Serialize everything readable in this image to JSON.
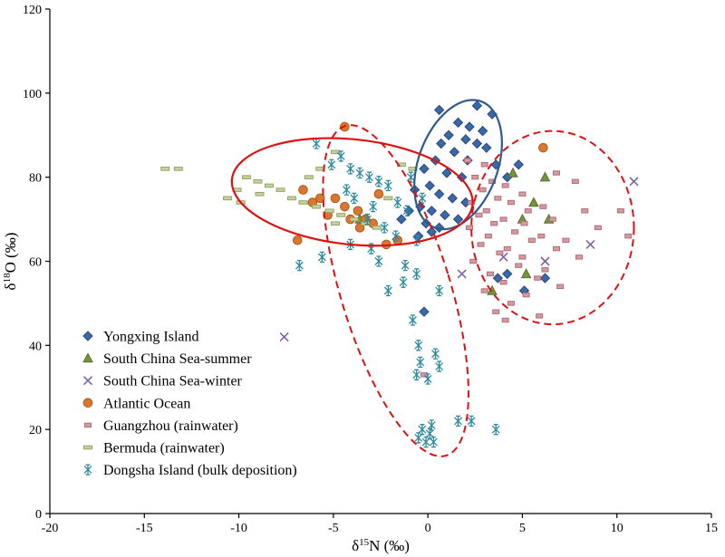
{
  "chart_data": {
    "type": "scatter",
    "title": "",
    "xlabel": "δ15N (‰)",
    "ylabel": "δ18O (‰)",
    "xlabel_parts": {
      "prefix": "δ",
      "sup": "15",
      "rest": "N (‰)"
    },
    "ylabel_parts": {
      "prefix": "δ",
      "sup": "18",
      "rest": "O (‰)"
    },
    "xlim": [
      -20,
      15
    ],
    "ylim": [
      0,
      120
    ],
    "xticks": [
      -20,
      -15,
      -10,
      -5,
      0,
      5,
      10,
      15
    ],
    "yticks": [
      0,
      20,
      40,
      60,
      80,
      100,
      120
    ],
    "grid": false,
    "legend_position": "inside lower-left",
    "series": [
      {
        "id": "yongxing-island",
        "name": "Yongxing Island",
        "marker": "diamond",
        "color": "#3A68A8",
        "stroke": "#27497A",
        "points": [
          [
            0.6,
            96
          ],
          [
            2.6,
            97
          ],
          [
            3.4,
            95
          ],
          [
            1.6,
            93
          ],
          [
            2.2,
            92
          ],
          [
            2.9,
            91
          ],
          [
            1.1,
            90
          ],
          [
            2.0,
            89
          ],
          [
            0.7,
            88
          ],
          [
            2.6,
            88
          ],
          [
            3.1,
            87
          ],
          [
            1.4,
            86
          ],
          [
            0.4,
            84
          ],
          [
            2.1,
            84
          ],
          [
            3.6,
            83
          ],
          [
            4.8,
            83
          ],
          [
            -0.2,
            82
          ],
          [
            1.0,
            81
          ],
          [
            1.8,
            80
          ],
          [
            4.2,
            80
          ],
          [
            0.1,
            78
          ],
          [
            -0.7,
            77
          ],
          [
            0.6,
            76
          ],
          [
            1.3,
            75
          ],
          [
            2.0,
            74
          ],
          [
            -0.4,
            73
          ],
          [
            0.2,
            72
          ],
          [
            0.9,
            71
          ],
          [
            1.6,
            70
          ],
          [
            -0.1,
            69
          ],
          [
            0.6,
            68
          ],
          [
            0.2,
            67
          ],
          [
            -0.5,
            66
          ],
          [
            -1.0,
            72
          ],
          [
            -1.4,
            70
          ],
          [
            4.2,
            57
          ],
          [
            3.7,
            56
          ],
          [
            6.2,
            56
          ],
          [
            5.1,
            53
          ],
          [
            -0.2,
            48
          ]
        ]
      },
      {
        "id": "scs-summer",
        "name": "South China Sea-summer",
        "marker": "triangle",
        "color": "#77933C",
        "stroke": "#5A7030",
        "points": [
          [
            4.5,
            81
          ],
          [
            6.2,
            80
          ],
          [
            5.6,
            74
          ],
          [
            6.4,
            70
          ],
          [
            5.0,
            70
          ],
          [
            -3.6,
            70
          ],
          [
            5.2,
            57
          ],
          [
            3.4,
            53
          ]
        ]
      },
      {
        "id": "scs-winter",
        "name": "South China Sea-winter",
        "marker": "x",
        "color": "#8064A2",
        "stroke": "#8064A2",
        "points": [
          [
            10.9,
            79
          ],
          [
            8.6,
            64
          ],
          [
            6.2,
            60
          ],
          [
            4.0,
            61
          ],
          [
            1.8,
            57
          ],
          [
            -7.6,
            42
          ]
        ]
      },
      {
        "id": "atlantic-ocean",
        "name": "Atlantic Ocean",
        "marker": "circle",
        "color": "#D9772F",
        "stroke": "#AD5B1F",
        "points": [
          [
            -4.4,
            92
          ],
          [
            6.1,
            87
          ],
          [
            -6.6,
            77
          ],
          [
            -2.6,
            76
          ],
          [
            -5.7,
            75
          ],
          [
            -4.9,
            75
          ],
          [
            -6.1,
            74
          ],
          [
            -4.4,
            73
          ],
          [
            -3.7,
            72
          ],
          [
            -5.3,
            71
          ],
          [
            -4.1,
            70
          ],
          [
            -3.3,
            70
          ],
          [
            -2.9,
            69
          ],
          [
            -3.6,
            68
          ],
          [
            -6.9,
            65
          ],
          [
            -1.6,
            65
          ],
          [
            -2.2,
            64
          ]
        ]
      },
      {
        "id": "guangzhou-rainwater",
        "name": "Guangzhou (rainwater)",
        "marker": "hbar",
        "color": "#D69AA2",
        "stroke": "#AF6E77",
        "points": [
          [
            2.1,
            84
          ],
          [
            3.0,
            83
          ],
          [
            6.8,
            81
          ],
          [
            2.5,
            80
          ],
          [
            3.4,
            79
          ],
          [
            7.8,
            79
          ],
          [
            4.1,
            78
          ],
          [
            2.9,
            77
          ],
          [
            5.0,
            76
          ],
          [
            3.7,
            75
          ],
          [
            2.3,
            74
          ],
          [
            4.4,
            74
          ],
          [
            6.1,
            73
          ],
          [
            3.1,
            72
          ],
          [
            5.3,
            72
          ],
          [
            8.3,
            72
          ],
          [
            10.2,
            72
          ],
          [
            2.7,
            71
          ],
          [
            4.0,
            70
          ],
          [
            6.6,
            70
          ],
          [
            3.5,
            69
          ],
          [
            5.1,
            69
          ],
          [
            9.0,
            68
          ],
          [
            2.2,
            68
          ],
          [
            4.6,
            67
          ],
          [
            6.0,
            66
          ],
          [
            10.6,
            66
          ],
          [
            3.2,
            66
          ],
          [
            5.5,
            65
          ],
          [
            7.3,
            65
          ],
          [
            2.8,
            64
          ],
          [
            4.2,
            63
          ],
          [
            6.8,
            63
          ],
          [
            3.8,
            62
          ],
          [
            5.0,
            61
          ],
          [
            8.0,
            61
          ],
          [
            2.4,
            60
          ],
          [
            4.8,
            59
          ],
          [
            6.2,
            58
          ],
          [
            3.3,
            57
          ],
          [
            5.8,
            56
          ],
          [
            4.0,
            55
          ],
          [
            7.0,
            54
          ],
          [
            3.0,
            53
          ],
          [
            5.2,
            52
          ],
          [
            4.4,
            50
          ],
          [
            3.6,
            48
          ],
          [
            5.9,
            47
          ],
          [
            4.1,
            46
          ],
          [
            -0.2,
            33
          ]
        ]
      },
      {
        "id": "bermuda-rainwater",
        "name": "Bermuda (rainwater)",
        "marker": "hbar2",
        "color": "#C5D3A0",
        "stroke": "#94A562",
        "points": [
          [
            -13.9,
            82
          ],
          [
            -13.2,
            82
          ],
          [
            -4.9,
            86
          ],
          [
            -9.6,
            80
          ],
          [
            -9.0,
            79
          ],
          [
            -8.4,
            78
          ],
          [
            -10.1,
            77
          ],
          [
            -7.8,
            77
          ],
          [
            -8.9,
            76
          ],
          [
            -7.2,
            75
          ],
          [
            -9.9,
            74
          ],
          [
            -10.6,
            75
          ],
          [
            -6.6,
            74
          ],
          [
            -5.9,
            73
          ],
          [
            -5.2,
            72
          ],
          [
            -4.6,
            71
          ],
          [
            -3.9,
            70
          ],
          [
            -3.3,
            69
          ],
          [
            -2.7,
            68
          ],
          [
            -6.3,
            80
          ],
          [
            -5.7,
            82
          ],
          [
            -1.4,
            83
          ],
          [
            -0.8,
            82
          ],
          [
            -4.9,
            69
          ],
          [
            -2.1,
            75
          ]
        ]
      },
      {
        "id": "dongsha-island",
        "name": "Dongsha Island (bulk deposition)",
        "marker": "star6",
        "color": "#2C8A9E",
        "stroke": "#2C8A9E",
        "points": [
          [
            -5.9,
            88
          ],
          [
            -4.6,
            85
          ],
          [
            -5.1,
            83
          ],
          [
            -4.1,
            82
          ],
          [
            -3.6,
            81
          ],
          [
            -3.1,
            80
          ],
          [
            -0.9,
            80
          ],
          [
            -2.6,
            79
          ],
          [
            -2.1,
            78
          ],
          [
            -4.3,
            77
          ],
          [
            -3.9,
            75
          ],
          [
            -0.3,
            75
          ],
          [
            -1.6,
            74
          ],
          [
            -2.9,
            73
          ],
          [
            -1.1,
            72
          ],
          [
            -3.2,
            70
          ],
          [
            -2.3,
            68
          ],
          [
            -1.7,
            66
          ],
          [
            -0.6,
            65
          ],
          [
            -4.1,
            64
          ],
          [
            -3.0,
            63
          ],
          [
            -5.6,
            61
          ],
          [
            -2.6,
            60
          ],
          [
            -6.8,
            59
          ],
          [
            -1.2,
            59
          ],
          [
            -0.6,
            57
          ],
          [
            -1.3,
            55
          ],
          [
            -2.1,
            53
          ],
          [
            0.6,
            53
          ],
          [
            -0.8,
            46
          ],
          [
            -0.5,
            40
          ],
          [
            0.4,
            38
          ],
          [
            -0.4,
            36
          ],
          [
            0.6,
            35
          ],
          [
            -0.6,
            33
          ],
          [
            0.0,
            32
          ],
          [
            2.3,
            22
          ],
          [
            1.6,
            22
          ],
          [
            0.2,
            21
          ],
          [
            -0.3,
            20
          ],
          [
            3.6,
            20
          ],
          [
            0.1,
            19
          ],
          [
            -0.5,
            18
          ],
          [
            0.3,
            17
          ],
          [
            -0.1,
            17
          ]
        ]
      }
    ],
    "ellipses": [
      {
        "id": "blue-solid-ellipse",
        "color": "#2E5B8C",
        "dash": false,
        "cx": 1.6,
        "cy": 83,
        "rx": 2.1,
        "ry": 16,
        "rot": 20,
        "width": 2.2
      },
      {
        "id": "red-solid-ellipse",
        "color": "#DD1111",
        "dash": false,
        "cx": -4.0,
        "cy": 76.5,
        "rx": 6.4,
        "ry": 12.5,
        "rot": 6,
        "width": 2.2
      },
      {
        "id": "red-dashed-tall-ellipse",
        "color": "#DD1111",
        "dash": true,
        "cx": -1.7,
        "cy": 53,
        "rx": 2.9,
        "ry": 41,
        "rot": -17,
        "width": 2
      },
      {
        "id": "red-dashed-right-ellipse",
        "color": "#DD1111",
        "dash": true,
        "cx": 6.6,
        "cy": 68,
        "rx": 4.3,
        "ry": 23,
        "rot": 0,
        "width": 2
      }
    ],
    "axis_color": "#000000",
    "background_color": "#ffffff"
  }
}
